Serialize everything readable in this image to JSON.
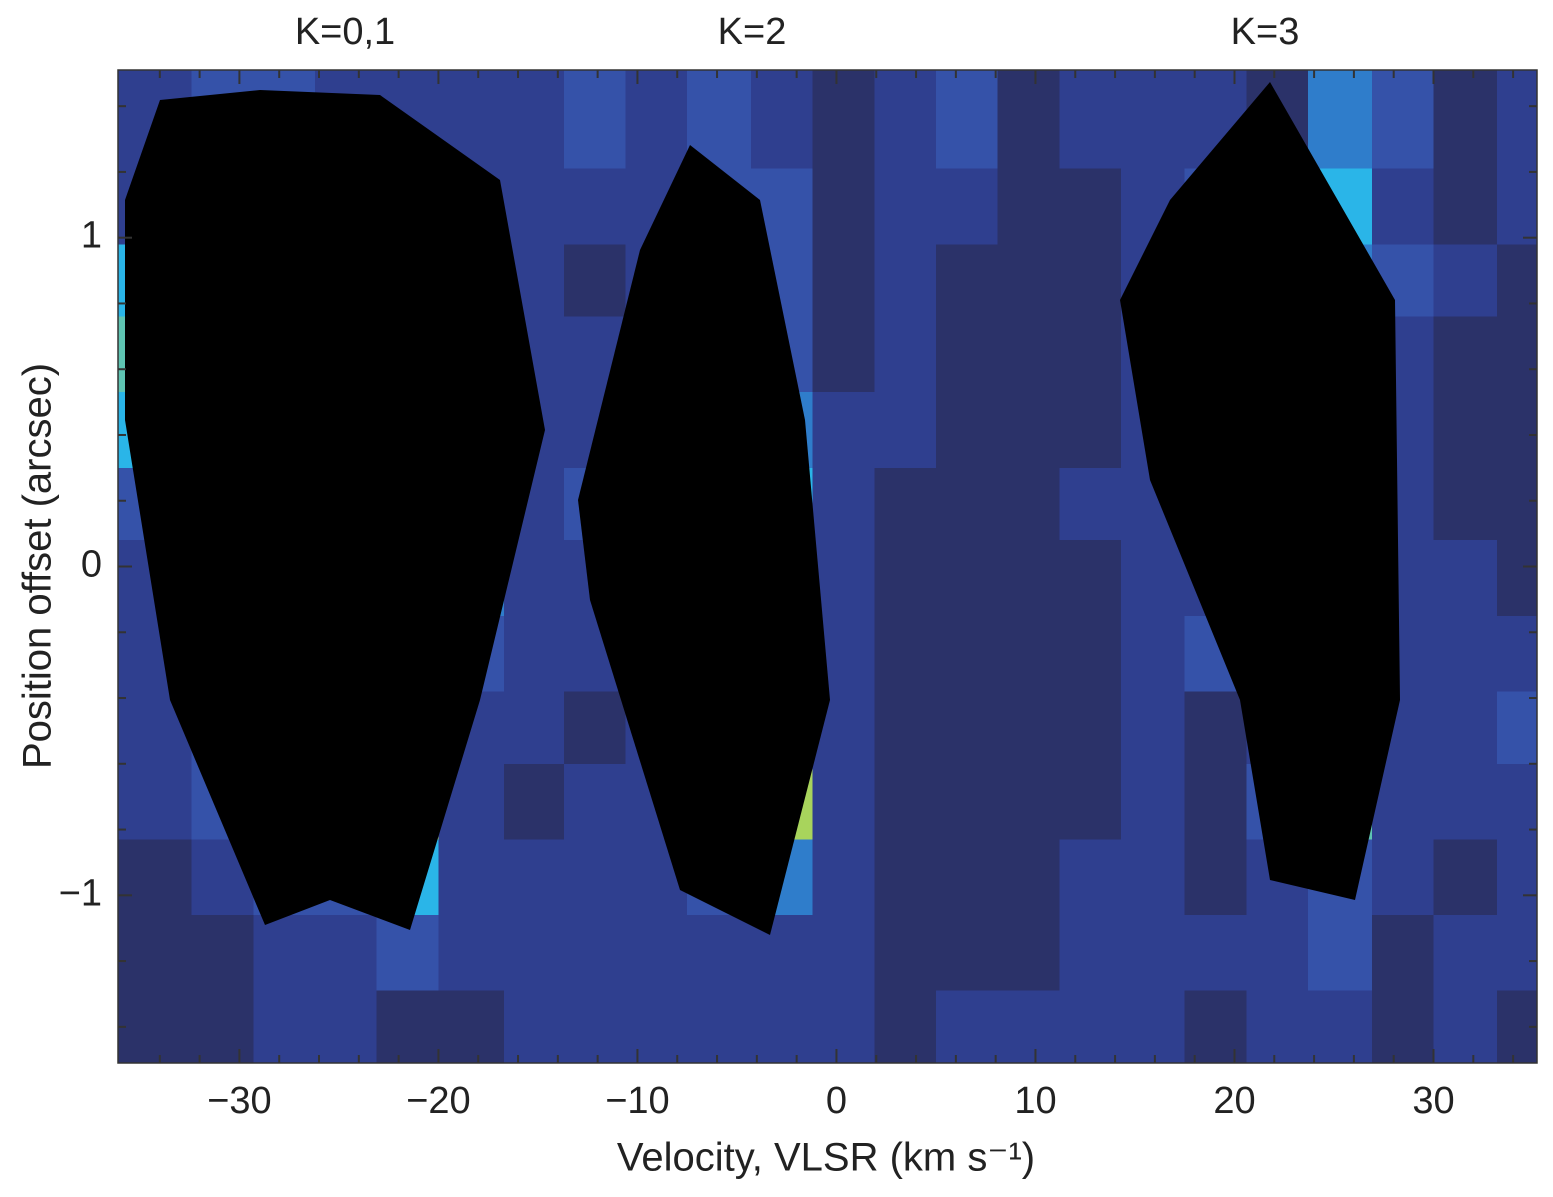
{
  "chart_data": {
    "type": "heatmap",
    "annotations": [
      "K=0,1",
      "K=2",
      "K=3"
    ],
    "xlabel": "Velocity, VLSR (km s⁻¹)",
    "ylabel": "Position offset (arcsec)",
    "xlim": [
      -36.1,
      35.2
    ],
    "ylim": [
      -1.51,
      1.51
    ],
    "xticks": [
      {
        "value": -30,
        "label": "−30"
      },
      {
        "value": -20,
        "label": "−20"
      },
      {
        "value": -10,
        "label": "−10"
      },
      0,
      10,
      20,
      30
    ],
    "yticks": [
      {
        "value": -1,
        "label": "−1"
      },
      0,
      1
    ],
    "xminorticks": [
      -34,
      -32,
      -28,
      -26,
      -24,
      -22,
      -18,
      -16,
      -14,
      -12,
      -8,
      -6,
      -4,
      -2,
      2,
      4,
      6,
      8,
      12,
      14,
      16,
      18,
      22,
      24,
      26,
      28,
      32,
      34
    ],
    "yminorticks": [
      -1.4,
      -1.2,
      -0.8,
      -0.6,
      -0.4,
      -0.2,
      0.2,
      0.4,
      0.6,
      0.8,
      1.2,
      1.4
    ],
    "x_edges": [
      -36.1,
      -32.4,
      -29.3,
      -26.2,
      -23.1,
      -20.0,
      -16.7,
      -13.7,
      -10.6,
      -7.5,
      -4.3,
      -1.2,
      1.9,
      5.0,
      8.1,
      11.2,
      14.3,
      17.5,
      20.6,
      23.7,
      26.9,
      30.0,
      33.2,
      35.2
    ],
    "y_edges": [
      1.51,
      1.21,
      0.98,
      0.76,
      0.53,
      0.3,
      0.08,
      -0.15,
      -0.38,
      -0.6,
      -0.83,
      -1.06,
      -1.29,
      -1.51
    ],
    "colorscale": [
      "#2b3269",
      "#2f3f8f",
      "#3552a9",
      "#2f7dcb",
      "#2ab5e8",
      "#5ec4b2",
      "#a8d45c",
      "#efe23b",
      "#f9b334",
      "#ef6d2c",
      "#e2452a"
    ],
    "z": [
      [
        1,
        2,
        2,
        1,
        1,
        1,
        1,
        2,
        1,
        2,
        1,
        0,
        1,
        2,
        0,
        1,
        1,
        1,
        0,
        3,
        2,
        0,
        1
      ],
      [
        1,
        4,
        4,
        4,
        2,
        1,
        1,
        1,
        1,
        2,
        2,
        0,
        1,
        1,
        0,
        0,
        1,
        2,
        2,
        4,
        1,
        0,
        1
      ],
      [
        4,
        6,
        6,
        6,
        5,
        5,
        1,
        0,
        1,
        4,
        2,
        0,
        1,
        0,
        0,
        0,
        1,
        3,
        4,
        3,
        2,
        1,
        0
      ],
      [
        5,
        6,
        6,
        7,
        6,
        5,
        1,
        1,
        4,
        4,
        2,
        0,
        1,
        0,
        0,
        0,
        1,
        3,
        5,
        2,
        1,
        0,
        0
      ],
      [
        4,
        6,
        7,
        7,
        6,
        5,
        1,
        1,
        4,
        4,
        3,
        1,
        1,
        0,
        0,
        0,
        1,
        3,
        5,
        3,
        1,
        0,
        0
      ],
      [
        2,
        6,
        7,
        9,
        7,
        5,
        1,
        2,
        3,
        5,
        4,
        1,
        0,
        0,
        0,
        1,
        1,
        1,
        3,
        3,
        1,
        0,
        0
      ],
      [
        1,
        5,
        7,
        10,
        7,
        3,
        1,
        1,
        4,
        7,
        7,
        1,
        0,
        0,
        0,
        0,
        1,
        1,
        1,
        7,
        1,
        1,
        0
      ],
      [
        1,
        5,
        7,
        7,
        8,
        2,
        1,
        1,
        2,
        7,
        8,
        1,
        0,
        0,
        0,
        0,
        1,
        2,
        2,
        6,
        1,
        1,
        1
      ],
      [
        1,
        2,
        7,
        7,
        7,
        1,
        1,
        0,
        1,
        6,
        7,
        1,
        0,
        0,
        0,
        0,
        1,
        0,
        1,
        6,
        1,
        1,
        2
      ],
      [
        1,
        2,
        5,
        5,
        6,
        1,
        0,
        1,
        1,
        5,
        6,
        1,
        0,
        0,
        0,
        0,
        1,
        0,
        2,
        5,
        1,
        1,
        1
      ],
      [
        0,
        1,
        2,
        2,
        4,
        1,
        1,
        1,
        1,
        2,
        3,
        1,
        0,
        0,
        0,
        1,
        1,
        0,
        1,
        2,
        1,
        0,
        1
      ],
      [
        0,
        0,
        1,
        1,
        2,
        1,
        1,
        1,
        1,
        1,
        1,
        1,
        0,
        0,
        0,
        1,
        1,
        1,
        1,
        2,
        0,
        1,
        1
      ],
      [
        0,
        0,
        1,
        1,
        0,
        0,
        1,
        1,
        1,
        1,
        1,
        1,
        0,
        1,
        1,
        1,
        1,
        0,
        1,
        1,
        0,
        1,
        0
      ]
    ]
  }
}
